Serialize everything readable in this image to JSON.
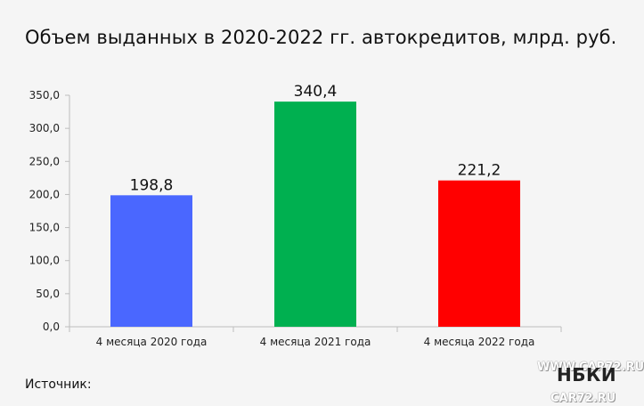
{
  "chart_data": {
    "type": "bar",
    "title": "Объем выданных в 2020-2022 гг. автокредитов, млрд. руб.",
    "categories": [
      "4 месяца 2020 года",
      "4 месяца 2021 года",
      "4 месяца 2022 года"
    ],
    "values": [
      198.8,
      340.4,
      221.2
    ],
    "value_labels": [
      "198,8",
      "340,4",
      "221,2"
    ],
    "colors": [
      "#4a67ff",
      "#00b050",
      "#ff0000"
    ],
    "ylim": [
      0,
      350
    ],
    "yticks": [
      {
        "value": 0,
        "label": "0,0"
      },
      {
        "value": 50,
        "label": "50,0"
      },
      {
        "value": 100,
        "label": "100,0"
      },
      {
        "value": 150,
        "label": "150,0"
      },
      {
        "value": 200,
        "label": "200,0"
      },
      {
        "value": 250,
        "label": "250,0"
      },
      {
        "value": 300,
        "label": "300,0"
      },
      {
        "value": 350,
        "label": "350,0"
      }
    ],
    "grid": false,
    "legend": "none"
  },
  "footer": {
    "source_label": "Источник:",
    "logo_text": "НБКИ",
    "watermark_top": "WWW.CAR72.RU",
    "watermark_bottom": "CAR72.RU"
  }
}
